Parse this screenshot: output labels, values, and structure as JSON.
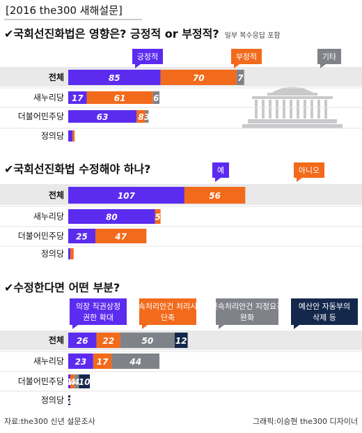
{
  "header": {
    "title": "[2016 the300 새해설문]"
  },
  "footer": {
    "source": "자료:the300 신년 설문조사",
    "credit": "그래픽:이승현 the300 디자이너"
  },
  "colors": {
    "purple": "#5b2cf0",
    "orange": "#f26a1b",
    "gray": "#7f8288",
    "navy": "#14284b",
    "band": "#e9e9ea"
  },
  "chart_data": [
    {
      "type": "bar",
      "stacked": true,
      "orientation": "horizontal",
      "title": "✔국회선진화법은 영향은? 긍정적 or 부정적?",
      "note": "일부 복수응답 포함",
      "categories": [
        "전체",
        "새누리당",
        "더불어민주당",
        "정의당"
      ],
      "series": [
        {
          "name": "긍정적",
          "color": "#5b2cf0",
          "values": [
            85,
            17,
            63,
            4
          ]
        },
        {
          "name": "부정적",
          "color": "#f26a1b",
          "values": [
            70,
            61,
            8,
            1
          ]
        },
        {
          "name": "기타",
          "color": "#7f8288",
          "values": [
            7,
            6,
            3,
            0
          ]
        }
      ],
      "inline_labels": [
        "4 / 1"
      ]
    },
    {
      "type": "bar",
      "stacked": true,
      "orientation": "horizontal",
      "title": "✔국회선진화법 수정해야 하나?",
      "categories": [
        "전체",
        "새누리당",
        "더불어민주당",
        "정의당"
      ],
      "series": [
        {
          "name": "예",
          "color": "#5b2cf0",
          "values": [
            107,
            80,
            25,
            2
          ]
        },
        {
          "name": "아니오",
          "color": "#f26a1b",
          "values": [
            56,
            5,
            47,
            3
          ]
        }
      ],
      "inline_labels": [
        "2 / 3"
      ]
    },
    {
      "type": "bar",
      "stacked": true,
      "orientation": "horizontal",
      "title": "✔수정한다면 어떤 부분?",
      "categories": [
        "전체",
        "새누리당",
        "더불어민주당",
        "정의당"
      ],
      "series": [
        {
          "name": "의장 직권상정 권한 확대",
          "color": "#5b2cf0",
          "values": [
            26,
            23,
            1,
            0
          ]
        },
        {
          "name": "신속처리안건 처리시간 단축",
          "color": "#f26a1b",
          "values": [
            22,
            17,
            4,
            0
          ]
        },
        {
          "name": "신속처리안건 지정요건 완화",
          "color": "#7f8288",
          "values": [
            50,
            44,
            4,
            0
          ]
        },
        {
          "name": "예산안 자동부의 삭제 등",
          "color": "#14284b",
          "values": [
            12,
            0,
            10,
            2
          ]
        }
      ]
    }
  ]
}
